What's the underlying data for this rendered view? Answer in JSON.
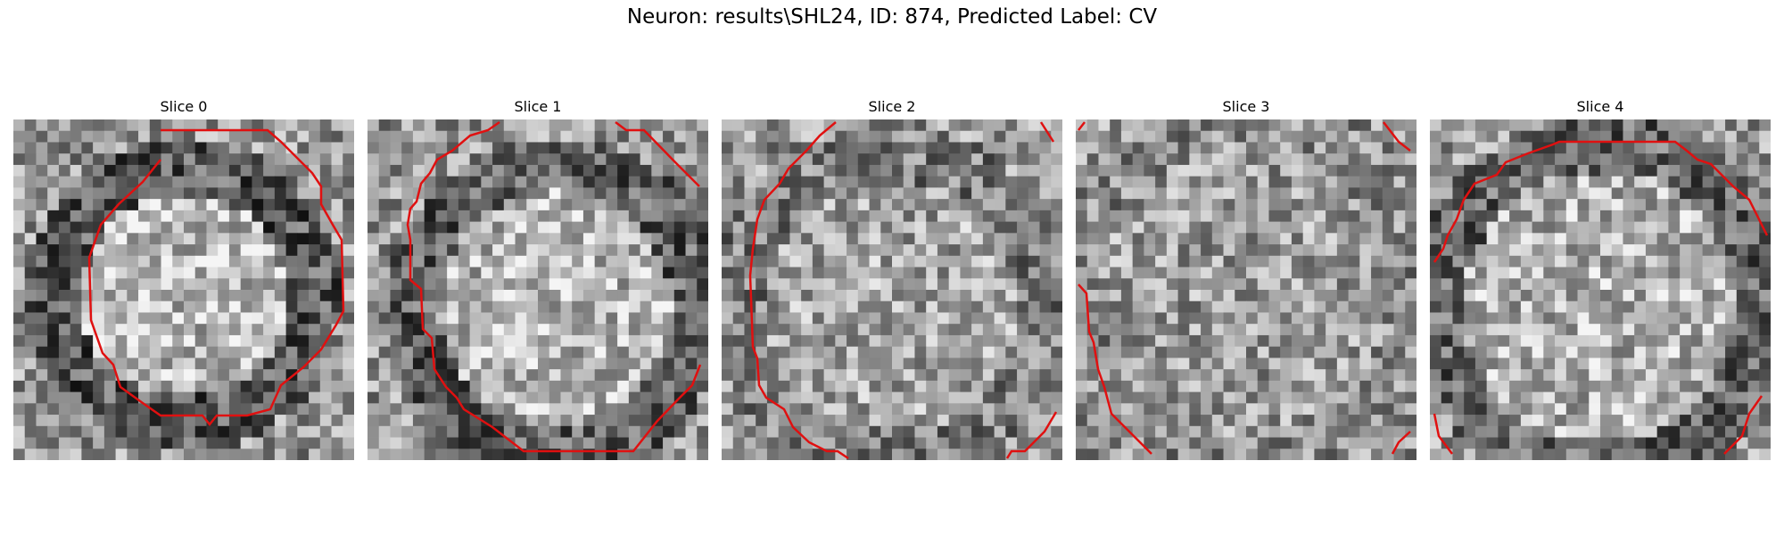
{
  "figure": {
    "title": "Neuron: results\\SHL24, ID: 874, Predicted Label: CV"
  },
  "panels": [
    {
      "title": "Slice 0"
    },
    {
      "title": "Slice 1"
    },
    {
      "title": "Slice 2"
    },
    {
      "title": "Slice 3"
    },
    {
      "title": "Slice 4"
    }
  ],
  "colors": {
    "contour": "#e01010",
    "background": "#ffffff"
  }
}
